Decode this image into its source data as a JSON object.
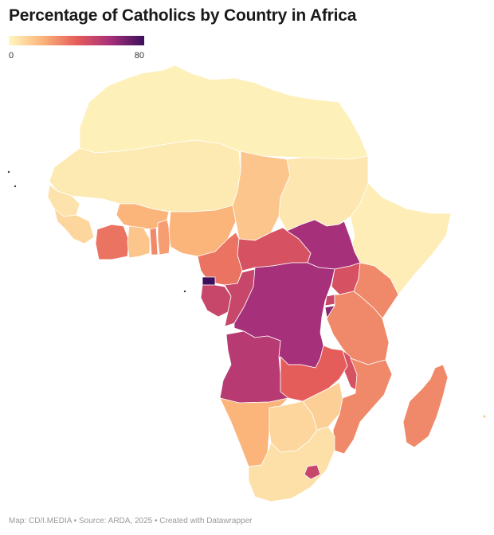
{
  "title": "Percentage of Catholics by Country in Africa",
  "legend": {
    "min": "0",
    "max": "80",
    "colors": [
      "#fef7c0",
      "#fbb47a",
      "#e55d5a",
      "#a7307a",
      "#3c0e5c"
    ]
  },
  "footer": "Map: CD/I.MEDIA • Source: ARDA, 2025 • Created with Datawrapper",
  "regions": [
    {
      "name": "North Africa",
      "pct": 2
    },
    {
      "name": "Sahel",
      "pct": 4
    },
    {
      "name": "Senegal",
      "pct": 6
    },
    {
      "name": "Guinea",
      "pct": 10
    },
    {
      "name": "Burkina Faso",
      "pct": 20
    },
    {
      "name": "Côte d'Ivoire",
      "pct": 35
    },
    {
      "name": "Ghana",
      "pct": 15
    },
    {
      "name": "Togo",
      "pct": 30
    },
    {
      "name": "Benin",
      "pct": 25
    },
    {
      "name": "Nigeria",
      "pct": 20
    },
    {
      "name": "Chad",
      "pct": 15
    },
    {
      "name": "Sudan",
      "pct": 5
    },
    {
      "name": "Horn of Africa",
      "pct": 3
    },
    {
      "name": "Cameroon",
      "pct": 35
    },
    {
      "name": "Central African Republic",
      "pct": 45
    },
    {
      "name": "South Sudan",
      "pct": 60
    },
    {
      "name": "Equatorial Guinea",
      "pct": 80
    },
    {
      "name": "Gabon",
      "pct": 50
    },
    {
      "name": "Republic of the Congo",
      "pct": 50
    },
    {
      "name": "DR Congo",
      "pct": 60
    },
    {
      "name": "Uganda",
      "pct": 45
    },
    {
      "name": "Kenya",
      "pct": 30
    },
    {
      "name": "Rwanda",
      "pct": 50
    },
    {
      "name": "Burundi",
      "pct": 65
    },
    {
      "name": "Tanzania",
      "pct": 30
    },
    {
      "name": "Angola",
      "pct": 55
    },
    {
      "name": "Zambia",
      "pct": 40
    },
    {
      "name": "Malawi",
      "pct": 45
    },
    {
      "name": "Mozambique",
      "pct": 30
    },
    {
      "name": "Namibia",
      "pct": 20
    },
    {
      "name": "Botswana",
      "pct": 10
    },
    {
      "name": "Zimbabwe",
      "pct": 12
    },
    {
      "name": "South Africa",
      "pct": 7
    },
    {
      "name": "Lesotho",
      "pct": 50
    },
    {
      "name": "Madagascar",
      "pct": 30
    }
  ]
}
